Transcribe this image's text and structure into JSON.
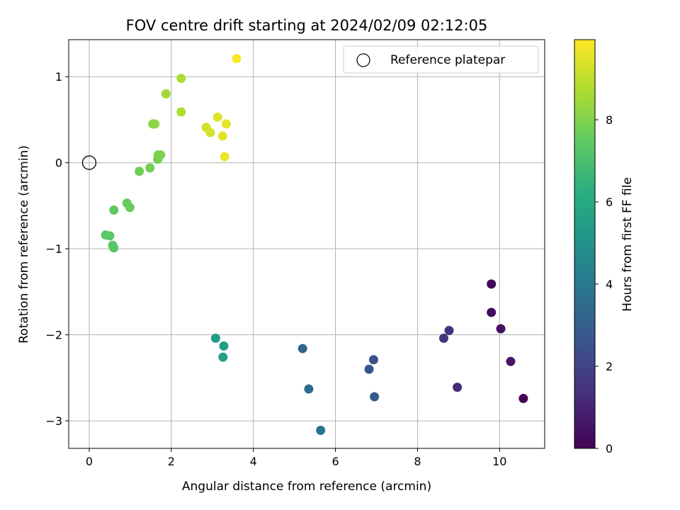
{
  "chart_data": {
    "type": "scatter",
    "title": "FOV centre drift starting at 2024/02/09 02:12:05",
    "xlabel": "Angular distance from reference (arcmin)",
    "ylabel": "Rotation from reference (arcmin)",
    "xlim": [
      -0.5,
      11.1
    ],
    "ylim": [
      -3.32,
      1.43
    ],
    "x_ticks": [
      0,
      2,
      4,
      6,
      8,
      10
    ],
    "y_ticks": [
      -3,
      -2,
      -1,
      0,
      1
    ],
    "grid": true,
    "legend": {
      "position": "top-right",
      "entries": [
        "Reference platepar"
      ]
    },
    "reference_point": {
      "x": 0,
      "y": 0
    },
    "colorbar": {
      "label": "Hours from first FF file",
      "colormap": "viridis",
      "range": [
        0,
        9.95
      ],
      "ticks": [
        0,
        2,
        4,
        6,
        8
      ]
    },
    "points": [
      {
        "x": 10.58,
        "y": -2.74,
        "c": 0.05
      },
      {
        "x": 9.8,
        "y": -1.41,
        "c": 0.2
      },
      {
        "x": 9.8,
        "y": -1.74,
        "c": 0.3
      },
      {
        "x": 10.03,
        "y": -1.93,
        "c": 0.4
      },
      {
        "x": 10.27,
        "y": -2.31,
        "c": 0.6
      },
      {
        "x": 8.97,
        "y": -2.61,
        "c": 1.2
      },
      {
        "x": 8.77,
        "y": -1.95,
        "c": 1.45
      },
      {
        "x": 8.64,
        "y": -2.04,
        "c": 1.6
      },
      {
        "x": 6.93,
        "y": -2.29,
        "c": 2.5
      },
      {
        "x": 6.82,
        "y": -2.4,
        "c": 2.7
      },
      {
        "x": 6.95,
        "y": -2.72,
        "c": 2.9
      },
      {
        "x": 5.2,
        "y": -2.16,
        "c": 3.3
      },
      {
        "x": 5.35,
        "y": -2.63,
        "c": 3.5
      },
      {
        "x": 5.64,
        "y": -3.11,
        "c": 3.8
      },
      {
        "x": 3.08,
        "y": -2.04,
        "c": 5.5
      },
      {
        "x": 3.28,
        "y": -2.13,
        "c": 5.55
      },
      {
        "x": 3.26,
        "y": -2.26,
        "c": 5.65
      },
      {
        "x": 0.6,
        "y": -0.99,
        "c": 7.3
      },
      {
        "x": 0.57,
        "y": -0.96,
        "c": 7.35
      },
      {
        "x": 0.5,
        "y": -0.85,
        "c": 7.4
      },
      {
        "x": 0.4,
        "y": -0.84,
        "c": 7.45
      },
      {
        "x": 0.6,
        "y": -0.55,
        "c": 7.5
      },
      {
        "x": 0.92,
        "y": -0.47,
        "c": 7.6
      },
      {
        "x": 0.99,
        "y": -0.52,
        "c": 7.65
      },
      {
        "x": 1.22,
        "y": -0.1,
        "c": 7.75
      },
      {
        "x": 1.48,
        "y": -0.06,
        "c": 7.85
      },
      {
        "x": 1.67,
        "y": 0.04,
        "c": 7.9
      },
      {
        "x": 1.68,
        "y": 0.09,
        "c": 7.95
      },
      {
        "x": 1.74,
        "y": 0.09,
        "c": 8.0
      },
      {
        "x": 1.55,
        "y": 0.45,
        "c": 8.2
      },
      {
        "x": 1.6,
        "y": 0.45,
        "c": 8.25
      },
      {
        "x": 1.87,
        "y": 0.8,
        "c": 8.55
      },
      {
        "x": 2.24,
        "y": 0.98,
        "c": 8.7
      },
      {
        "x": 2.24,
        "y": 0.59,
        "c": 8.75
      },
      {
        "x": 2.85,
        "y": 0.41,
        "c": 9.3
      },
      {
        "x": 2.95,
        "y": 0.35,
        "c": 9.35
      },
      {
        "x": 3.13,
        "y": 0.53,
        "c": 9.5
      },
      {
        "x": 3.25,
        "y": 0.31,
        "c": 9.55
      },
      {
        "x": 3.34,
        "y": 0.45,
        "c": 9.6
      },
      {
        "x": 3.3,
        "y": 0.07,
        "c": 9.7
      },
      {
        "x": 3.59,
        "y": 1.21,
        "c": 9.9
      }
    ]
  }
}
